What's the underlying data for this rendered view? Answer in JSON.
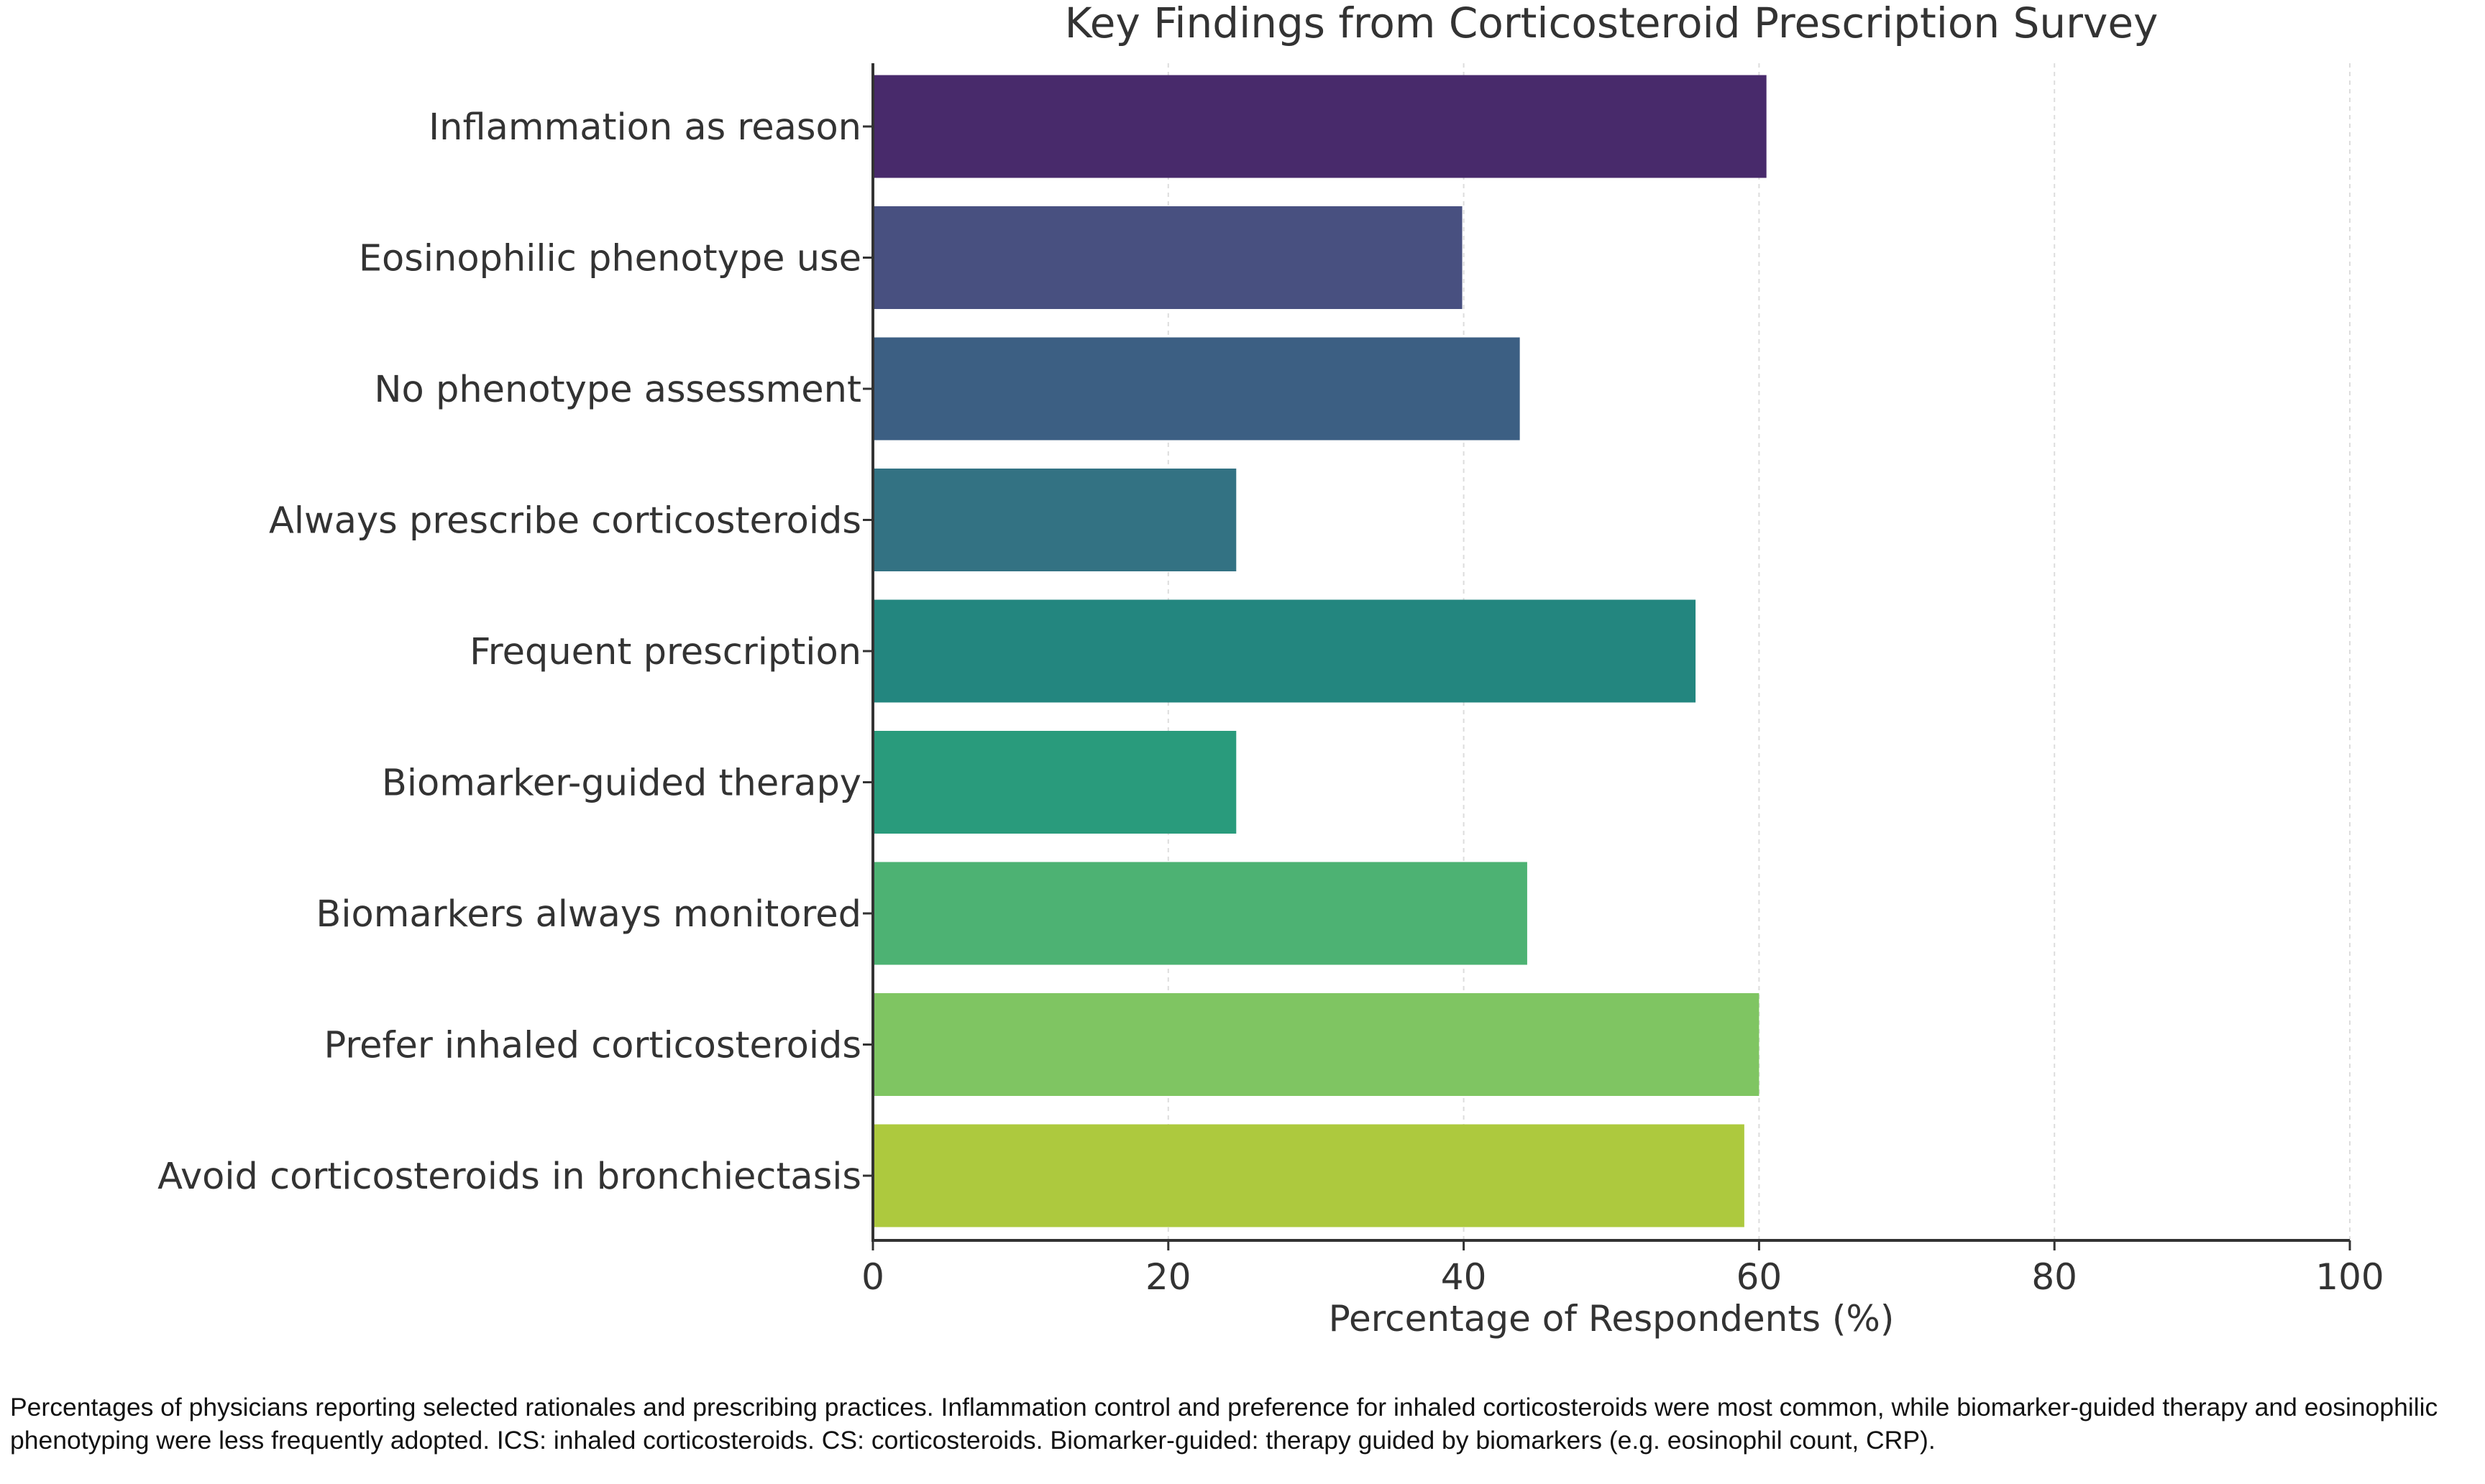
{
  "chart_data": {
    "type": "bar",
    "orientation": "horizontal",
    "title": "Key Findings from Corticosteroid Prescription Survey",
    "xlabel": "Percentage of Respondents (%)",
    "ylabel": "",
    "xlim": [
      0,
      100
    ],
    "xticks": [
      0,
      20,
      40,
      60,
      80,
      100
    ],
    "grid": "vertical dashed",
    "categories": [
      "Inflammation as reason",
      "Eosinophilic phenotype use",
      "No phenotype assessment",
      "Always prescribe corticosteroids",
      "Frequent prescription",
      "Biomarker-guided therapy",
      "Biomarkers always monitored",
      "Prefer inhaled corticosteroids",
      "Avoid corticosteroids in bronchiectasis"
    ],
    "values": [
      60.5,
      39.9,
      43.8,
      24.6,
      55.7,
      24.6,
      44.3,
      60.0,
      59.0
    ],
    "colors": [
      "#482a6b",
      "#485080",
      "#3c5f83",
      "#337283",
      "#23867f",
      "#299b7c",
      "#4db273",
      "#7fc562",
      "#adc93e"
    ]
  },
  "caption": "Percentages of physicians reporting selected rationales and prescribing practices. Inflammation control and preference for inhaled corticosteroids were most common, while biomarker-guided therapy and eosinophilic phenotyping were less frequently adopted. ICS: inhaled corticosteroids. CS: corticosteroids. Biomarker-guided: therapy guided by biomarkers (e.g. eosinophil count, CRP)."
}
